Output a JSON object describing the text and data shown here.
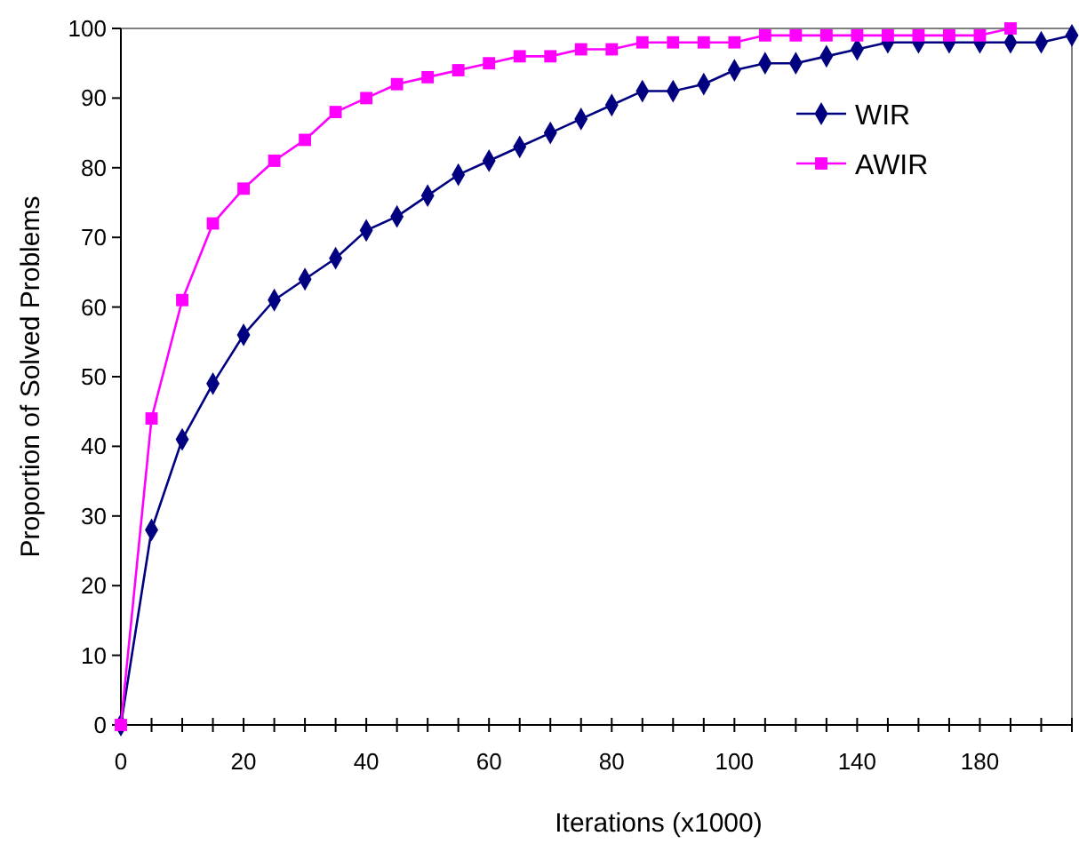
{
  "chart_data": {
    "type": "line",
    "xlabel": "Iterations (x1000)",
    "ylabel": "Proportion of Solved Problems",
    "categories": [
      "0",
      null,
      null,
      null,
      "20",
      null,
      null,
      null,
      "40",
      null,
      null,
      null,
      "60",
      null,
      null,
      null,
      "80",
      null,
      null,
      null,
      "100",
      null,
      null,
      null,
      "140",
      null,
      null,
      null,
      "180",
      null,
      null,
      null
    ],
    "series": [
      {
        "name": "WIR",
        "color": "#000080",
        "marker": "diamond",
        "values": [
          0,
          28,
          41,
          49,
          56,
          61,
          64,
          67,
          71,
          73,
          76,
          79,
          81,
          83,
          85,
          87,
          89,
          91,
          91,
          92,
          94,
          95,
          95,
          96,
          97,
          98,
          98,
          98,
          98,
          98,
          98,
          99
        ]
      },
      {
        "name": "AWIR",
        "color": "#ff00ff",
        "marker": "square",
        "values": [
          0,
          44,
          61,
          72,
          77,
          81,
          84,
          88,
          90,
          92,
          93,
          94,
          95,
          96,
          96,
          97,
          97,
          98,
          98,
          98,
          98,
          99,
          99,
          99,
          99,
          99,
          99,
          99,
          99,
          100,
          null,
          null
        ]
      }
    ],
    "ylim": [
      0,
      100
    ],
    "yticks": [
      0,
      10,
      20,
      30,
      40,
      50,
      60,
      70,
      80,
      90,
      100
    ],
    "grid": false,
    "legend": "top right",
    "line_style": "solid"
  }
}
